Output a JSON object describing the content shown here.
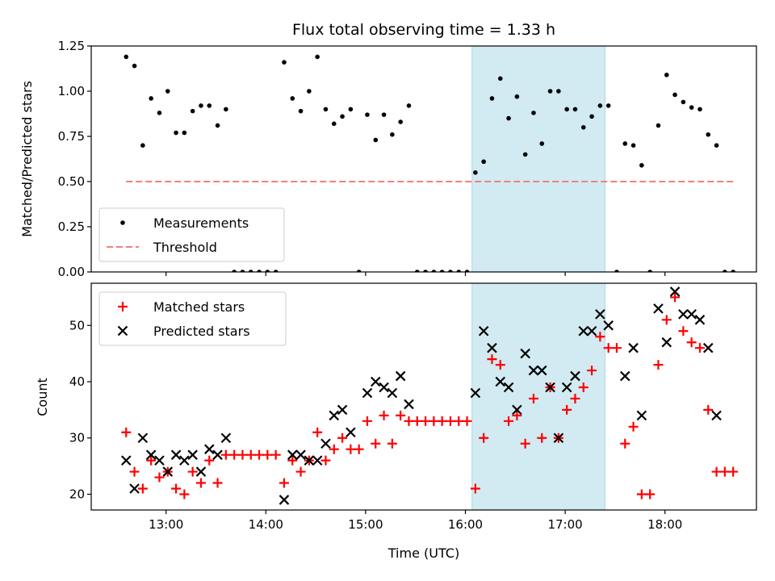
{
  "chart_data": [
    {
      "type": "scatter",
      "title": "Flux total observing time = 1.33 h",
      "ylabel": "Matched/Predicted stars",
      "xlabel": "",
      "xlim": [
        "12:15",
        "18:55"
      ],
      "ylim": [
        0,
        1.25
      ],
      "yticks": [
        "0.00",
        "0.25",
        "0.50",
        "0.75",
        "1.00",
        "1.25"
      ],
      "shaded_region": {
        "start": "16:04",
        "end": "17:24",
        "color": "#add8e6"
      },
      "legend": {
        "placement": "lower-left",
        "entries": [
          "Measurements",
          "Threshold"
        ]
      },
      "series": [
        {
          "name": "Measurements",
          "marker": "dot",
          "color": "#000000",
          "points": [
            [
              "12:36",
              1.19
            ],
            [
              "12:41",
              1.14
            ],
            [
              "12:46",
              0.7
            ],
            [
              "12:51",
              0.96
            ],
            [
              "12:56",
              0.88
            ],
            [
              "13:01",
              1.0
            ],
            [
              "13:06",
              0.77
            ],
            [
              "13:11",
              0.77
            ],
            [
              "13:16",
              0.89
            ],
            [
              "13:21",
              0.92
            ],
            [
              "13:26",
              0.92
            ],
            [
              "13:31",
              0.81
            ],
            [
              "13:36",
              0.9
            ],
            [
              "13:41",
              0
            ],
            [
              "13:46",
              0
            ],
            [
              "13:51",
              0
            ],
            [
              "13:56",
              0
            ],
            [
              "14:01",
              0
            ],
            [
              "14:06",
              0
            ],
            [
              "14:11",
              1.16
            ],
            [
              "14:16",
              0.96
            ],
            [
              "14:21",
              0.89
            ],
            [
              "14:26",
              1.0
            ],
            [
              "14:31",
              1.19
            ],
            [
              "14:36",
              0.9
            ],
            [
              "14:41",
              0.82
            ],
            [
              "14:46",
              0.86
            ],
            [
              "14:51",
              0.9
            ],
            [
              "14:56",
              0
            ],
            [
              "15:01",
              0.87
            ],
            [
              "15:06",
              0.73
            ],
            [
              "15:11",
              0.87
            ],
            [
              "15:16",
              0.76
            ],
            [
              "15:21",
              0.83
            ],
            [
              "15:26",
              0.92
            ],
            [
              "15:31",
              0
            ],
            [
              "15:36",
              0
            ],
            [
              "15:41",
              0
            ],
            [
              "15:46",
              0
            ],
            [
              "15:51",
              0
            ],
            [
              "15:56",
              0
            ],
            [
              "16:01",
              0
            ],
            [
              "16:06",
              0.55
            ],
            [
              "16:11",
              0.61
            ],
            [
              "16:16",
              0.96
            ],
            [
              "16:21",
              1.07
            ],
            [
              "16:26",
              0.85
            ],
            [
              "16:31",
              0.97
            ],
            [
              "16:36",
              0.65
            ],
            [
              "16:41",
              0.88
            ],
            [
              "16:46",
              0.71
            ],
            [
              "16:51",
              1.0
            ],
            [
              "16:56",
              1.0
            ],
            [
              "17:01",
              0.9
            ],
            [
              "17:06",
              0.9
            ],
            [
              "17:11",
              0.8
            ],
            [
              "17:16",
              0.86
            ],
            [
              "17:21",
              0.92
            ],
            [
              "17:26",
              0.92
            ],
            [
              "17:31",
              0
            ],
            [
              "17:36",
              0.71
            ],
            [
              "17:41",
              0.7
            ],
            [
              "17:46",
              0.59
            ],
            [
              "17:51",
              0
            ],
            [
              "17:56",
              0.81
            ],
            [
              "18:01",
              1.09
            ],
            [
              "18:06",
              0.98
            ],
            [
              "18:11",
              0.94
            ],
            [
              "18:16",
              0.91
            ],
            [
              "18:21",
              0.9
            ],
            [
              "18:26",
              0.76
            ],
            [
              "18:31",
              0.7
            ],
            [
              "18:36",
              0
            ],
            [
              "18:41",
              0
            ]
          ]
        },
        {
          "name": "Threshold",
          "style": "dashed",
          "color": "#f08080",
          "points": [
            [
              "12:36",
              0.5
            ],
            [
              "18:41",
              0.5
            ]
          ]
        }
      ]
    },
    {
      "type": "scatter",
      "title": "",
      "ylabel": "Count",
      "xlabel": "Time (UTC)",
      "xlim": [
        "12:15",
        "18:55"
      ],
      "ylim": [
        17.2,
        57.5
      ],
      "yticks": [
        "20",
        "30",
        "40",
        "50"
      ],
      "xticks": [
        "13:00",
        "14:00",
        "15:00",
        "16:00",
        "17:00",
        "18:00"
      ],
      "shaded_region": {
        "start": "16:04",
        "end": "17:24",
        "color": "#add8e6"
      },
      "legend": {
        "placement": "top-left",
        "entries": [
          "Matched stars",
          "Predicted stars"
        ]
      },
      "series": [
        {
          "name": "Matched stars",
          "marker": "plus",
          "color": "#ff0000",
          "points": [
            [
              "12:36",
              31
            ],
            [
              "12:41",
              24
            ],
            [
              "12:46",
              21
            ],
            [
              "12:51",
              26
            ],
            [
              "12:56",
              23
            ],
            [
              "13:01",
              24
            ],
            [
              "13:06",
              21
            ],
            [
              "13:11",
              20
            ],
            [
              "13:16",
              24
            ],
            [
              "13:21",
              22
            ],
            [
              "13:26",
              26
            ],
            [
              "13:31",
              22
            ],
            [
              "13:36",
              27
            ],
            [
              "13:41",
              27
            ],
            [
              "13:46",
              27
            ],
            [
              "13:51",
              27
            ],
            [
              "13:56",
              27
            ],
            [
              "14:01",
              27
            ],
            [
              "14:06",
              27
            ],
            [
              "14:11",
              22
            ],
            [
              "14:16",
              26
            ],
            [
              "14:21",
              24
            ],
            [
              "14:26",
              26
            ],
            [
              "14:31",
              31
            ],
            [
              "14:36",
              26
            ],
            [
              "14:41",
              28
            ],
            [
              "14:46",
              30
            ],
            [
              "14:51",
              28
            ],
            [
              "14:56",
              28
            ],
            [
              "15:01",
              33
            ],
            [
              "15:06",
              29
            ],
            [
              "15:11",
              34
            ],
            [
              "15:16",
              29
            ],
            [
              "15:21",
              34
            ],
            [
              "15:26",
              33
            ],
            [
              "15:31",
              33
            ],
            [
              "15:36",
              33
            ],
            [
              "15:41",
              33
            ],
            [
              "15:46",
              33
            ],
            [
              "15:51",
              33
            ],
            [
              "15:56",
              33
            ],
            [
              "16:01",
              33
            ],
            [
              "16:06",
              21
            ],
            [
              "16:11",
              30
            ],
            [
              "16:16",
              44
            ],
            [
              "16:21",
              43
            ],
            [
              "16:26",
              33
            ],
            [
              "16:31",
              34
            ],
            [
              "16:36",
              29
            ],
            [
              "16:41",
              37
            ],
            [
              "16:46",
              30
            ],
            [
              "16:51",
              39
            ],
            [
              "16:56",
              30
            ],
            [
              "17:01",
              35
            ],
            [
              "17:06",
              37
            ],
            [
              "17:11",
              39
            ],
            [
              "17:16",
              42
            ],
            [
              "17:21",
              48
            ],
            [
              "17:26",
              46
            ],
            [
              "17:31",
              46
            ],
            [
              "17:36",
              29
            ],
            [
              "17:41",
              32
            ],
            [
              "17:46",
              20
            ],
            [
              "17:51",
              20
            ],
            [
              "17:56",
              43
            ],
            [
              "18:01",
              51
            ],
            [
              "18:06",
              55
            ],
            [
              "18:11",
              49
            ],
            [
              "18:16",
              47
            ],
            [
              "18:21",
              46
            ],
            [
              "18:26",
              35
            ],
            [
              "18:31",
              24
            ],
            [
              "18:36",
              24
            ],
            [
              "18:41",
              24
            ]
          ]
        },
        {
          "name": "Predicted stars",
          "marker": "x",
          "color": "#000000",
          "points": [
            [
              "12:36",
              26
            ],
            [
              "12:41",
              21
            ],
            [
              "12:46",
              30
            ],
            [
              "12:51",
              27
            ],
            [
              "12:56",
              26
            ],
            [
              "13:01",
              24
            ],
            [
              "13:06",
              27
            ],
            [
              "13:11",
              26
            ],
            [
              "13:16",
              27
            ],
            [
              "13:21",
              24
            ],
            [
              "13:26",
              28
            ],
            [
              "13:31",
              27
            ],
            [
              "13:36",
              30
            ],
            [
              "14:11",
              19
            ],
            [
              "14:16",
              27
            ],
            [
              "14:21",
              27
            ],
            [
              "14:26",
              26
            ],
            [
              "14:31",
              26
            ],
            [
              "14:36",
              29
            ],
            [
              "14:41",
              34
            ],
            [
              "14:46",
              35
            ],
            [
              "14:51",
              31
            ],
            [
              "15:01",
              38
            ],
            [
              "15:06",
              40
            ],
            [
              "15:11",
              39
            ],
            [
              "15:16",
              38
            ],
            [
              "15:21",
              41
            ],
            [
              "15:26",
              36
            ],
            [
              "16:06",
              38
            ],
            [
              "16:11",
              49
            ],
            [
              "16:16",
              46
            ],
            [
              "16:21",
              40
            ],
            [
              "16:26",
              39
            ],
            [
              "16:31",
              35
            ],
            [
              "16:36",
              45
            ],
            [
              "16:41",
              42
            ],
            [
              "16:46",
              42
            ],
            [
              "16:51",
              39
            ],
            [
              "16:56",
              30
            ],
            [
              "17:01",
              39
            ],
            [
              "17:06",
              41
            ],
            [
              "17:11",
              49
            ],
            [
              "17:16",
              49
            ],
            [
              "17:21",
              52
            ],
            [
              "17:26",
              50
            ],
            [
              "17:36",
              41
            ],
            [
              "17:41",
              46
            ],
            [
              "17:46",
              34
            ],
            [
              "17:56",
              53
            ],
            [
              "18:01",
              47
            ],
            [
              "18:06",
              56
            ],
            [
              "18:11",
              52
            ],
            [
              "18:16",
              52
            ],
            [
              "18:21",
              51
            ],
            [
              "18:26",
              46
            ],
            [
              "18:31",
              34
            ]
          ]
        }
      ]
    }
  ]
}
